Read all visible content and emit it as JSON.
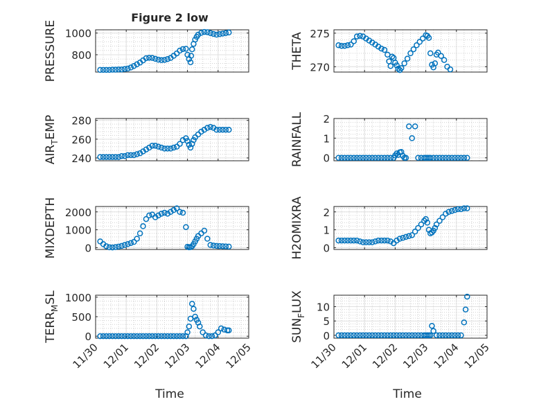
{
  "figure": {
    "title": "Figure 2 low",
    "xlabel": "Time"
  },
  "chart_data": [
    {
      "type": "scatter",
      "ylabel": "PRESSURE",
      "xlim": [
        0,
        5
      ],
      "ylim": [
        640,
        1030
      ],
      "xticks": [
        0,
        1,
        2,
        3,
        4,
        5
      ],
      "xticklabels": [
        "11/30",
        "12/01",
        "12/02",
        "12/03",
        "12/04",
        "12/05"
      ],
      "yticks": [
        800,
        1000
      ],
      "yticklabels": [
        "800",
        "1000"
      ],
      "grid": true,
      "marker": "circle",
      "series": [
        {
          "x": [
            0.15,
            0.25,
            0.35,
            0.45,
            0.55,
            0.65,
            0.75,
            0.85,
            0.95,
            1.05,
            1.15,
            1.25,
            1.35,
            1.45,
            1.55,
            1.65,
            1.75,
            1.85,
            1.95,
            2.05,
            2.15,
            2.25,
            2.35,
            2.45,
            2.55,
            2.65,
            2.75,
            2.85,
            2.95,
            3.0,
            3.05,
            3.1,
            3.12,
            3.15,
            3.2,
            3.25,
            3.3,
            3.35,
            3.45,
            3.55,
            3.65,
            3.75,
            3.85,
            3.95,
            4.05,
            4.15,
            4.25,
            4.35
          ],
          "y": [
            660,
            660,
            660,
            660,
            662,
            662,
            664,
            664,
            668,
            672,
            682,
            696,
            712,
            728,
            748,
            768,
            772,
            770,
            762,
            754,
            750,
            752,
            760,
            770,
            790,
            812,
            838,
            852,
            855,
            800,
            760,
            730,
            790,
            850,
            900,
            940,
            965,
            985,
            1002,
            1010,
            1008,
            1000,
            992,
            985,
            990,
            995,
            1000,
            1005
          ]
        }
      ]
    },
    {
      "type": "scatter",
      "ylabel": "THETA",
      "xlim": [
        0,
        5
      ],
      "ylim": [
        269.2,
        275.5
      ],
      "xticks": [
        0,
        1,
        2,
        3,
        4,
        5
      ],
      "xticklabels": [
        "11/30",
        "12/01",
        "12/02",
        "12/03",
        "12/04",
        "12/05"
      ],
      "yticks": [
        270,
        275
      ],
      "yticklabels": [
        "270",
        "275"
      ],
      "grid": true,
      "marker": "circle",
      "series": [
        {
          "x": [
            0.15,
            0.25,
            0.35,
            0.45,
            0.55,
            0.65,
            0.75,
            0.85,
            0.95,
            1.05,
            1.15,
            1.25,
            1.35,
            1.45,
            1.55,
            1.65,
            1.75,
            1.8,
            1.85,
            1.9,
            1.95,
            2.0,
            2.05,
            2.1,
            2.15,
            2.2,
            2.3,
            2.4,
            2.5,
            2.6,
            2.7,
            2.8,
            2.9,
            3.0,
            3.05,
            3.1,
            3.15,
            3.2,
            3.25,
            3.3,
            3.35,
            3.4,
            3.5,
            3.6,
            3.7,
            3.8
          ],
          "y": [
            273.2,
            273.1,
            273.1,
            273.2,
            273.3,
            273.8,
            274.5,
            274.6,
            274.5,
            274.2,
            273.9,
            273.6,
            273.3,
            273.0,
            272.7,
            272.5,
            271.8,
            270.8,
            270.1,
            271.5,
            271.3,
            270.6,
            270.2,
            269.7,
            269.5,
            269.8,
            270.5,
            271.2,
            272.0,
            272.6,
            273.2,
            273.7,
            274.2,
            274.7,
            274.6,
            274.3,
            272.0,
            270.3,
            269.9,
            270.5,
            271.8,
            272.1,
            271.6,
            271.0,
            270.0,
            269.6
          ]
        }
      ]
    },
    {
      "type": "scatter",
      "ylabel": "AIR_TEMP",
      "xlim": [
        0,
        5
      ],
      "ylim": [
        237,
        282
      ],
      "xticks": [
        0,
        1,
        2,
        3,
        4,
        5
      ],
      "xticklabels": [
        "11/30",
        "12/01",
        "12/02",
        "12/03",
        "12/04",
        "12/05"
      ],
      "yticks": [
        240,
        260,
        280
      ],
      "yticklabels": [
        "240",
        "260",
        "280"
      ],
      "grid": true,
      "marker": "circle",
      "series": [
        {
          "x": [
            0.15,
            0.25,
            0.35,
            0.45,
            0.55,
            0.65,
            0.75,
            0.85,
            0.95,
            1.05,
            1.15,
            1.25,
            1.35,
            1.45,
            1.55,
            1.65,
            1.75,
            1.85,
            1.95,
            2.05,
            2.15,
            2.25,
            2.35,
            2.45,
            2.55,
            2.65,
            2.75,
            2.85,
            2.95,
            3.0,
            3.05,
            3.1,
            3.15,
            3.2,
            3.25,
            3.35,
            3.45,
            3.55,
            3.65,
            3.75,
            3.85,
            3.95,
            4.05,
            4.15,
            4.25,
            4.35
          ],
          "y": [
            241,
            241,
            241,
            241,
            241,
            241,
            241,
            242,
            242,
            243,
            243,
            243,
            244,
            245,
            247,
            249,
            251,
            253,
            253,
            252,
            251,
            250,
            250,
            250,
            251,
            252,
            255,
            259,
            261,
            258,
            254,
            251,
            255,
            259,
            262,
            265,
            268,
            270,
            272,
            273,
            272,
            270,
            270,
            270,
            270,
            270
          ]
        }
      ]
    },
    {
      "type": "scatter",
      "ylabel": "RAINFALL",
      "xlim": [
        0,
        5
      ],
      "ylim": [
        -0.15,
        2.0
      ],
      "xticks": [
        0,
        1,
        2,
        3,
        4,
        5
      ],
      "xticklabels": [
        "11/30",
        "12/01",
        "12/02",
        "12/03",
        "12/04",
        "12/05"
      ],
      "yticks": [
        0,
        1,
        2
      ],
      "yticklabels": [
        "0",
        "1",
        "2"
      ],
      "grid": true,
      "marker": "circle",
      "series": [
        {
          "x": [
            0.15,
            0.25,
            0.35,
            0.45,
            0.55,
            0.65,
            0.75,
            0.85,
            0.95,
            1.05,
            1.15,
            1.25,
            1.35,
            1.45,
            1.55,
            1.65,
            1.75,
            1.85,
            1.95,
            2.0,
            2.05,
            2.1,
            2.15,
            2.2,
            2.25,
            2.3,
            2.35,
            2.45,
            2.55,
            2.65,
            2.75,
            2.85,
            2.95,
            3.0,
            3.05,
            3.1,
            3.15,
            3.25,
            3.35,
            3.45,
            3.55,
            3.65,
            3.75,
            3.85,
            3.95,
            4.05,
            4.15,
            4.25,
            4.35
          ],
          "y": [
            0,
            0,
            0,
            0,
            0,
            0,
            0,
            0,
            0,
            0,
            0,
            0,
            0,
            0,
            0,
            0,
            0,
            0,
            0,
            0.12,
            0.22,
            0.15,
            0.28,
            0.3,
            0.1,
            0,
            0,
            1.6,
            1.0,
            1.6,
            0,
            0,
            0,
            0,
            0,
            0,
            0,
            0,
            0,
            0,
            0,
            0,
            0,
            0,
            0,
            0,
            0,
            0,
            0
          ]
        }
      ]
    },
    {
      "type": "scatter",
      "ylabel": "MIXDEPTH",
      "xlim": [
        0,
        5
      ],
      "ylim": [
        -100,
        2300
      ],
      "xticks": [
        0,
        1,
        2,
        3,
        4,
        5
      ],
      "xticklabels": [
        "11/30",
        "12/01",
        "12/02",
        "12/03",
        "12/04",
        "12/05"
      ],
      "yticks": [
        0,
        1000,
        2000
      ],
      "yticklabels": [
        "0",
        "1000",
        "2000"
      ],
      "grid": true,
      "marker": "circle",
      "series": [
        {
          "x": [
            0.15,
            0.25,
            0.35,
            0.45,
            0.55,
            0.65,
            0.75,
            0.85,
            0.95,
            1.05,
            1.15,
            1.25,
            1.35,
            1.45,
            1.55,
            1.65,
            1.75,
            1.85,
            1.95,
            2.05,
            2.15,
            2.25,
            2.35,
            2.45,
            2.55,
            2.65,
            2.75,
            2.85,
            2.95,
            3.0,
            3.05,
            3.1,
            3.15,
            3.2,
            3.25,
            3.3,
            3.35,
            3.45,
            3.55,
            3.65,
            3.75,
            3.85,
            3.95,
            4.05,
            4.15,
            4.25,
            4.35
          ],
          "y": [
            350,
            200,
            80,
            20,
            10,
            30,
            60,
            100,
            150,
            200,
            260,
            320,
            500,
            800,
            1200,
            1600,
            1800,
            1850,
            1700,
            1800,
            1900,
            1950,
            1900,
            2000,
            2100,
            2200,
            2000,
            1950,
            1150,
            50,
            20,
            30,
            80,
            200,
            350,
            500,
            650,
            800,
            950,
            500,
            150,
            120,
            100,
            90,
            80,
            70,
            60
          ]
        }
      ]
    },
    {
      "type": "scatter",
      "ylabel": "H2OMIXRA",
      "xlim": [
        0,
        5
      ],
      "ylim": [
        -0.1,
        2.3
      ],
      "xticks": [
        0,
        1,
        2,
        3,
        4,
        5
      ],
      "xticklabels": [
        "11/30",
        "12/01",
        "12/02",
        "12/03",
        "12/04",
        "12/05"
      ],
      "yticks": [
        0,
        1,
        2
      ],
      "yticklabels": [
        "0",
        "1",
        "2"
      ],
      "grid": true,
      "marker": "circle",
      "series": [
        {
          "x": [
            0.15,
            0.25,
            0.35,
            0.45,
            0.55,
            0.65,
            0.75,
            0.85,
            0.95,
            1.05,
            1.15,
            1.25,
            1.35,
            1.45,
            1.55,
            1.65,
            1.75,
            1.85,
            1.95,
            2.05,
            2.15,
            2.25,
            2.35,
            2.45,
            2.55,
            2.65,
            2.75,
            2.85,
            2.95,
            3.0,
            3.05,
            3.1,
            3.15,
            3.2,
            3.25,
            3.3,
            3.35,
            3.45,
            3.55,
            3.65,
            3.75,
            3.85,
            3.95,
            4.05,
            4.15,
            4.25,
            4.35
          ],
          "y": [
            0.4,
            0.4,
            0.4,
            0.4,
            0.4,
            0.4,
            0.4,
            0.35,
            0.3,
            0.3,
            0.3,
            0.3,
            0.35,
            0.4,
            0.4,
            0.4,
            0.4,
            0.35,
            0.25,
            0.4,
            0.5,
            0.55,
            0.6,
            0.65,
            0.7,
            0.9,
            1.1,
            1.3,
            1.5,
            1.6,
            1.4,
            1.0,
            0.8,
            0.85,
            0.95,
            1.1,
            1.3,
            1.5,
            1.7,
            1.9,
            2.0,
            2.05,
            2.1,
            2.15,
            2.15,
            2.2,
            2.2
          ]
        }
      ]
    },
    {
      "type": "scatter",
      "ylabel": "TERR_MSL",
      "xlim": [
        0,
        5
      ],
      "ylim": [
        -50,
        1050
      ],
      "xticks": [
        0,
        1,
        2,
        3,
        4,
        5
      ],
      "xticklabels": [
        "11/30",
        "12/01",
        "12/02",
        "12/03",
        "12/04",
        "12/05"
      ],
      "yticks": [
        0,
        500,
        1000
      ],
      "yticklabels": [
        "0",
        "500",
        "1000"
      ],
      "grid": true,
      "marker": "circle",
      "series": [
        {
          "x": [
            0.15,
            0.25,
            0.35,
            0.45,
            0.55,
            0.65,
            0.75,
            0.85,
            0.95,
            1.05,
            1.15,
            1.25,
            1.35,
            1.45,
            1.55,
            1.65,
            1.75,
            1.85,
            1.95,
            2.05,
            2.15,
            2.25,
            2.35,
            2.45,
            2.55,
            2.65,
            2.75,
            2.85,
            2.95,
            3.0,
            3.05,
            3.1,
            3.15,
            3.2,
            3.25,
            3.3,
            3.35,
            3.4,
            3.5,
            3.6,
            3.7,
            3.8,
            3.9,
            4.0,
            4.1,
            4.2,
            4.3,
            4.35
          ],
          "y": [
            0,
            0,
            0,
            0,
            0,
            0,
            0,
            0,
            0,
            0,
            0,
            0,
            0,
            0,
            0,
            0,
            0,
            0,
            0,
            0,
            0,
            0,
            0,
            0,
            0,
            0,
            0,
            0,
            0,
            100,
            250,
            450,
            830,
            700,
            500,
            420,
            350,
            250,
            100,
            20,
            0,
            0,
            20,
            100,
            200,
            170,
            150,
            150
          ]
        }
      ]
    },
    {
      "type": "scatter",
      "ylabel": "SUN_FLUX",
      "xlim": [
        0,
        5
      ],
      "ylim": [
        -1,
        14
      ],
      "xticks": [
        0,
        1,
        2,
        3,
        4,
        5
      ],
      "xticklabels": [
        "11/30",
        "12/01",
        "12/02",
        "12/03",
        "12/04",
        "12/05"
      ],
      "yticks": [
        0,
        5,
        10
      ],
      "yticklabels": [
        "0",
        "5",
        "10"
      ],
      "grid": true,
      "marker": "circle",
      "series": [
        {
          "x": [
            0.15,
            0.25,
            0.35,
            0.45,
            0.55,
            0.65,
            0.75,
            0.85,
            0.95,
            1.05,
            1.15,
            1.25,
            1.35,
            1.45,
            1.55,
            1.65,
            1.75,
            1.85,
            1.95,
            2.05,
            2.15,
            2.25,
            2.35,
            2.45,
            2.55,
            2.65,
            2.75,
            2.85,
            2.95,
            3.0,
            3.05,
            3.1,
            3.15,
            3.2,
            3.25,
            3.35,
            3.45,
            3.55,
            3.65,
            3.75,
            3.85,
            3.95,
            4.05,
            4.15,
            4.25,
            4.3,
            4.35
          ],
          "y": [
            0,
            0,
            0,
            0,
            0,
            0,
            0,
            0,
            0,
            0,
            0,
            0,
            0,
            0,
            0,
            0,
            0,
            0,
            0,
            0,
            0,
            0,
            0,
            0,
            0,
            0,
            0,
            0,
            0,
            0,
            0,
            0,
            0,
            3.3,
            1.5,
            0,
            0,
            0,
            0,
            0,
            0,
            0,
            0,
            0,
            4.5,
            9.0,
            13.5
          ]
        }
      ]
    }
  ]
}
